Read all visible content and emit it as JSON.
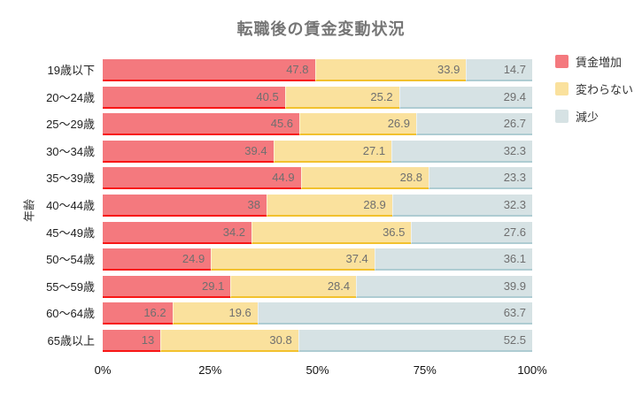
{
  "title": "転職後の賃金変動状況",
  "chart_data": {
    "type": "bar",
    "orientation": "horizontal",
    "stacked": true,
    "normalized_to_100_percent": true,
    "title": "転職後の賃金変動状況",
    "ylabel": "年齢",
    "xlabel": "",
    "xlim": [
      0,
      100
    ],
    "x_ticks": [
      "0%",
      "25%",
      "50%",
      "75%",
      "100%"
    ],
    "grid": false,
    "legend_position": "right-top",
    "categories": [
      "19歳以下",
      "20〜24歳",
      "25〜29歳",
      "30〜34歳",
      "35〜39歳",
      "40〜44歳",
      "45〜49歳",
      "50〜54歳",
      "55〜59歳",
      "60〜64歳",
      "65歳以上"
    ],
    "series": [
      {
        "name": "賃金増加",
        "key": "wage-increase",
        "fill_color": "#f4797e",
        "border_color": "#f81616",
        "values": [
          47.8,
          40.5,
          45.6,
          39.4,
          44.9,
          38,
          34.2,
          24.9,
          29.1,
          16.2,
          13
        ]
      },
      {
        "name": "変わらない",
        "key": "no-change",
        "fill_color": "#fae19d",
        "border_color": "#f2c12e",
        "values": [
          33.9,
          25.2,
          26.9,
          27.1,
          28.8,
          28.9,
          36.5,
          37.4,
          28.4,
          19.6,
          30.8
        ]
      },
      {
        "name": "減少",
        "key": "decrease",
        "fill_color": "#d6e2e4",
        "border_color": "#aeccd2",
        "values": [
          14.7,
          29.4,
          26.7,
          32.3,
          23.3,
          32.3,
          27.6,
          36.1,
          39.9,
          63.7,
          52.5
        ]
      }
    ]
  }
}
